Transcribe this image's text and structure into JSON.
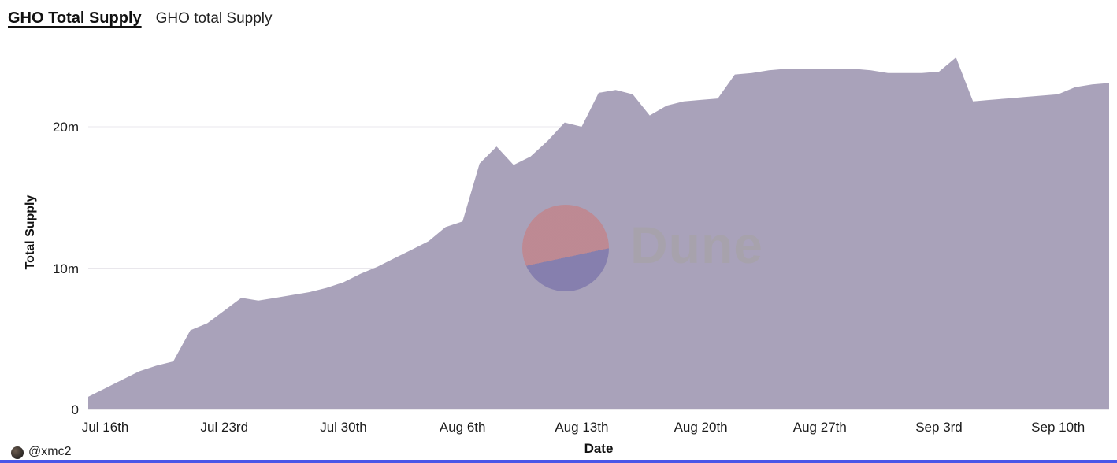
{
  "header": {
    "title": "GHO Total Supply",
    "subtitle": "GHO total Supply"
  },
  "watermark": {
    "brand": "Dune"
  },
  "footer": {
    "handle": "@xmc2"
  },
  "colors": {
    "area": "#a9a2ba",
    "grid": "#e9e7ec",
    "baseline": "#d9d6dd",
    "axis_text": "#1b1b1b",
    "watermark_circle_top": "#c1858c",
    "watermark_circle_bottom": "#8079ac",
    "watermark_text": "#a7a3ab",
    "bottom_bar": "#4a57e8",
    "background": "#ffffff"
  },
  "chart_data": {
    "type": "area",
    "title": "GHO total Supply",
    "xlabel": "Date",
    "ylabel": "Total Supply",
    "ylim": [
      0,
      25
    ],
    "grid": "horizontal",
    "legend": "none",
    "yticks": [
      {
        "value": 0,
        "label": "0"
      },
      {
        "value": 10,
        "label": "10m"
      },
      {
        "value": 20,
        "label": "20m"
      }
    ],
    "xticks": [
      {
        "i": 1,
        "label": "Jul 16th"
      },
      {
        "i": 8,
        "label": "Jul 23rd"
      },
      {
        "i": 15,
        "label": "Jul 30th"
      },
      {
        "i": 22,
        "label": "Aug 6th"
      },
      {
        "i": 29,
        "label": "Aug 13th"
      },
      {
        "i": 36,
        "label": "Aug 20th"
      },
      {
        "i": 43,
        "label": "Aug 27th"
      },
      {
        "i": 50,
        "label": "Sep 3rd"
      },
      {
        "i": 57,
        "label": "Sep 10th"
      }
    ],
    "x": [
      "Jul 15",
      "Jul 16",
      "Jul 17",
      "Jul 18",
      "Jul 19",
      "Jul 20",
      "Jul 21",
      "Jul 22",
      "Jul 23",
      "Jul 24",
      "Jul 25",
      "Jul 26",
      "Jul 27",
      "Jul 28",
      "Jul 29",
      "Jul 30",
      "Jul 31",
      "Aug 1",
      "Aug 2",
      "Aug 3",
      "Aug 4",
      "Aug 5",
      "Aug 6",
      "Aug 7",
      "Aug 8",
      "Aug 9",
      "Aug 10",
      "Aug 11",
      "Aug 12",
      "Aug 13",
      "Aug 14",
      "Aug 15",
      "Aug 16",
      "Aug 17",
      "Aug 18",
      "Aug 19",
      "Aug 20",
      "Aug 21",
      "Aug 22",
      "Aug 23",
      "Aug 24",
      "Aug 25",
      "Aug 26",
      "Aug 27",
      "Aug 28",
      "Aug 29",
      "Aug 30",
      "Aug 31",
      "Sep 1",
      "Sep 2",
      "Sep 3",
      "Sep 4",
      "Sep 5",
      "Sep 6",
      "Sep 7",
      "Sep 8",
      "Sep 9",
      "Sep 10",
      "Sep 11",
      "Sep 12",
      "Sep 13"
    ],
    "values": [
      0.9,
      1.5,
      2.1,
      2.7,
      3.1,
      3.4,
      5.6,
      6.1,
      7.0,
      7.9,
      7.7,
      7.9,
      8.1,
      8.3,
      8.6,
      9.0,
      9.6,
      10.1,
      10.7,
      11.3,
      11.9,
      12.9,
      13.3,
      17.4,
      18.6,
      17.3,
      17.9,
      19.0,
      20.3,
      20.0,
      22.4,
      22.6,
      22.3,
      20.8,
      21.5,
      21.8,
      21.9,
      22.0,
      23.7,
      23.8,
      24.0,
      24.1,
      24.1,
      24.1,
      24.1,
      24.1,
      24.0,
      23.8,
      23.8,
      23.8,
      23.9,
      24.9,
      21.8,
      21.9,
      22.0,
      22.1,
      22.2,
      22.3,
      22.8,
      23.0,
      23.1
    ],
    "units": "millions"
  }
}
